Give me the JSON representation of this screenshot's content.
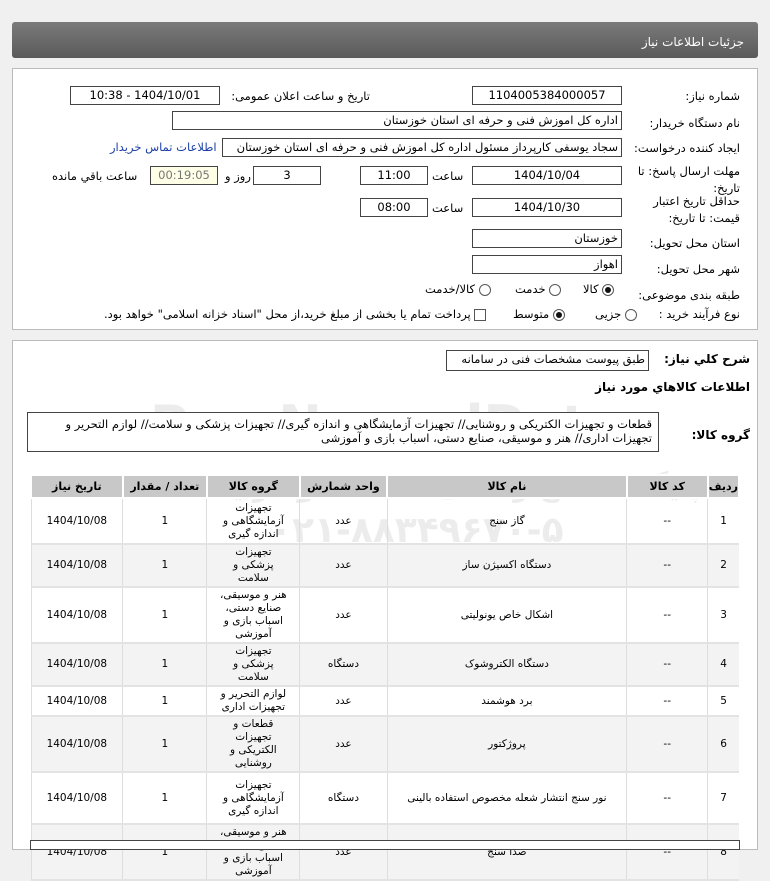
{
  "header": {
    "title": "جزئیات اطلاعات نیاز"
  },
  "fields": {
    "need_number_label": "شماره نیاز:",
    "need_number": "1104005384000057",
    "announce_label": "تاریخ و ساعت اعلان عمومی:",
    "announce_value": "1404/10/01 - 10:38",
    "buyer_label": "نام دستگاه خریدار:",
    "buyer": "اداره کل اموزش فنی و حرفه ای استان خوزستان",
    "creator_label": "ایجاد کننده درخواست:",
    "creator": "سجاد یوسفی کارپرداز مسئول اداره کل اموزش فنی و حرفه ای استان خوزستان",
    "contact_link": "اطلاعات تماس خریدار",
    "deadline_label": "مهلت ارسال پاسخ: تا تاریخ:",
    "deadline_date": "1404/10/04",
    "time_label": "ساعت",
    "deadline_time": "11:00",
    "days": "3",
    "days_label": "روز و",
    "remaining": "00:19:05",
    "remaining_label": "ساعت باقي مانده",
    "validity_label": "حداقل تاریخ اعتبار قیمت: تا تاریخ:",
    "validity_date": "1404/10/30",
    "validity_time": "08:00",
    "province_label": "استان محل تحویل:",
    "province": "خوزستان",
    "city_label": "شهر محل تحویل:",
    "city": "اهواز",
    "category_label": "طبقه بندی موضوعی:",
    "category_options": [
      "کالا",
      "خدمت",
      "کالا/خدمت"
    ],
    "category_selected": "کالا",
    "process_label": "نوع فرآیند خرید :",
    "process_options": [
      "جزیی",
      "متوسط"
    ],
    "process_selected": "متوسط",
    "payment_note": "پرداخت تمام یا بخشی از مبلغ خرید،از محل \"اسناد خزانه اسلامی\" خواهد بود."
  },
  "summary": {
    "label": "شرح کلي نیاز:",
    "value": "طبق پیوست مشخصات فنی در سامانه"
  },
  "goods_title": "اطلاعات کالاهاي مورد نیاز",
  "goods_group": {
    "label": "گروه کالا:",
    "value": "قطعات و تجهیزات الکتریکی و روشنایی// تجهیزات آزمایشگاهی و اندازه گیری// تجهیزات پزشکی و سلامت// لوازم التحریر و تجهیزات اداری// هنر و موسیقی، صنایع دستی، اسباب بازی و آموزشی"
  },
  "table": {
    "headers": [
      "ردیف",
      "کد کالا",
      "نام کالا",
      "واحد شمارش",
      "گروه کالا",
      "تعداد / مقدار",
      "تاریخ نیاز"
    ],
    "rows": [
      [
        "1",
        "--",
        "گاز سنج",
        "عدد",
        "تجهیزات آزمایشگاهی و اندازه گیری",
        "1",
        "1404/10/08"
      ],
      [
        "2",
        "--",
        "دستگاه اکسیژن ساز",
        "عدد",
        "تجهیزات پزشکی و سلامت",
        "1",
        "1404/10/08"
      ],
      [
        "3",
        "--",
        "اشکال خاص یونولیتی",
        "عدد",
        "هنر و موسیقی، صنایع دستی، اسباب بازی و آموزشی",
        "1",
        "1404/10/08"
      ],
      [
        "4",
        "--",
        "دستگاه الکتروشوک",
        "دستگاه",
        "تجهیزات پزشکی و سلامت",
        "1",
        "1404/10/08"
      ],
      [
        "5",
        "--",
        "برد هوشمند",
        "عدد",
        "لوازم التحریر و تجهیزات اداری",
        "1",
        "1404/10/08"
      ],
      [
        "6",
        "--",
        "پروژکتور",
        "عدد",
        "قطعات و تجهیزات الکتریکی و روشنایی",
        "1",
        "1404/10/08"
      ],
      [
        "7",
        "--",
        "نور سنج انتشار شعله مخصوص استفاده بالینی",
        "دستگاه",
        "تجهیزات آزمایشگاهی و اندازه گیری",
        "1",
        "1404/10/08"
      ],
      [
        "8",
        "--",
        "صدا سنج",
        "عدد",
        "هنر و موسیقی، صنایع دستی، اسباب بازی و آموزشی",
        "1",
        "1404/10/08"
      ]
    ]
  },
  "watermark": {
    "brand": "ParsNamadData",
    "line1": "پایگاه اطلاع رسانی مناقصه و مزایده",
    "phone": "۰۲۱-۸۸۳۴۹۶۷۰-۵"
  }
}
